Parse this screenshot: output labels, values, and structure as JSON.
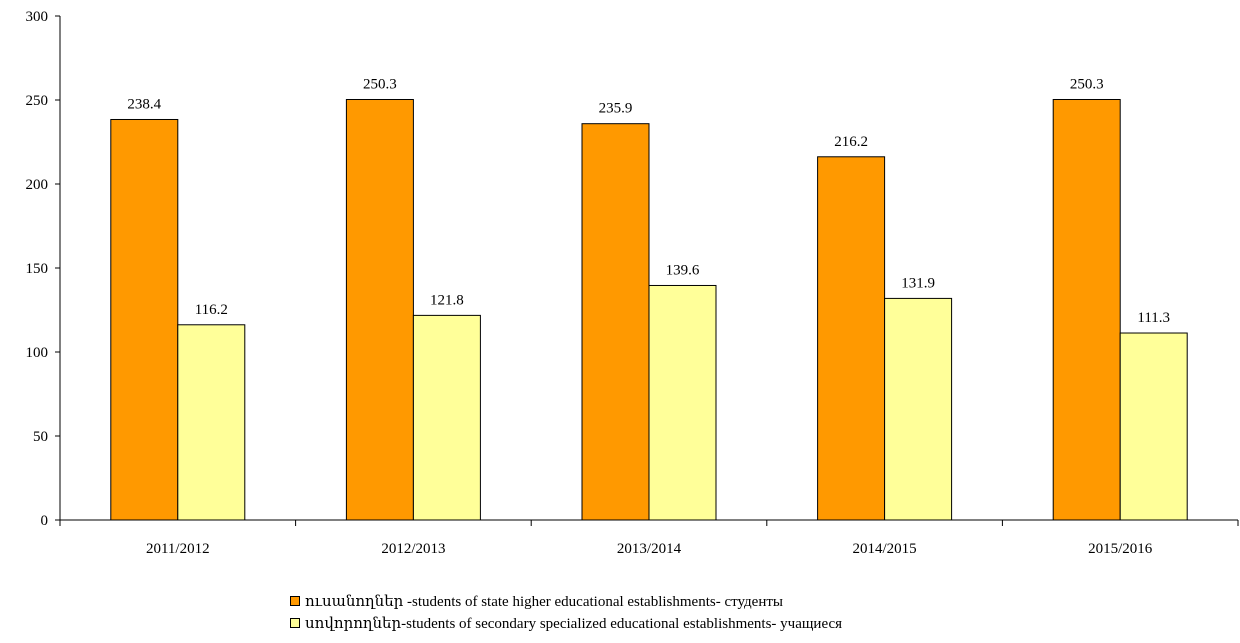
{
  "chart_data": {
    "type": "bar",
    "categories": [
      "2011/2012",
      "2012/2013",
      "2013/2014",
      "2014/2015",
      "2015/2016"
    ],
    "series": [
      {
        "name": "ուսանողներ -students of state higher educational establishments- студенты",
        "color": "#FF9900",
        "values": [
          238.4,
          250.3,
          235.9,
          216.2,
          250.3
        ],
        "labels": [
          "238.4",
          "250.3",
          "235.9",
          "216.2",
          "250.3"
        ]
      },
      {
        "name": "սովորողներ-students of secondary specialized educational establishments- учащиеся",
        "color": "#FFFF99",
        "values": [
          116.2,
          121.8,
          139.6,
          131.9,
          111.3
        ],
        "labels": [
          "116.2",
          "121.8",
          "139.6",
          "131.9",
          "111.3"
        ]
      }
    ],
    "yticks": [
      "0",
      "50",
      "100",
      "150",
      "200",
      "250",
      "300"
    ],
    "ylim": [
      0,
      300
    ],
    "title": "",
    "xlabel": "",
    "ylabel": "",
    "legend": "bottom",
    "grid": false
  }
}
